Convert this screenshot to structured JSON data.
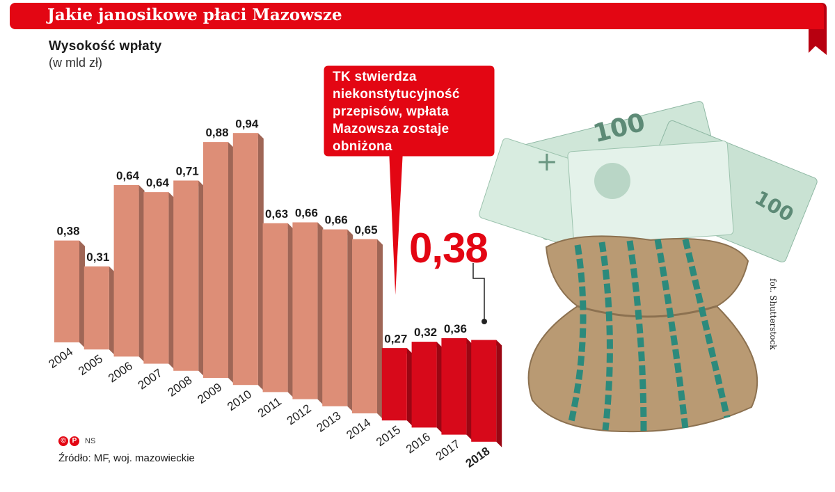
{
  "header": {
    "title": "Jakie janosikowe płaci Mazowsze"
  },
  "chart_data": {
    "type": "bar",
    "title": "Wysokość wpłaty",
    "ylabel": "(w mld zł)",
    "categories": [
      "2004",
      "2005",
      "2006",
      "2007",
      "2008",
      "2009",
      "2010",
      "2011",
      "2012",
      "2013",
      "2014",
      "2015",
      "2016",
      "2017",
      "2018"
    ],
    "values": [
      0.38,
      0.31,
      0.64,
      0.64,
      0.71,
      0.88,
      0.94,
      0.63,
      0.66,
      0.66,
      0.65,
      0.27,
      0.32,
      0.36,
      0.38
    ],
    "value_labels": [
      "0,38",
      "0,31",
      "0,64",
      "0,64",
      "0,71",
      "0,88",
      "0,94",
      "0,63",
      "0,66",
      "0,66",
      "0,65",
      "0,27",
      "0,32",
      "0,36",
      ""
    ],
    "highlight_value": "0,38",
    "colors": {
      "before": "#dd8e77",
      "after": "#d7091a"
    },
    "after_from_category": "2015",
    "annotation": "TK stwierdza niekonstytucyjność przepisów, wpłata Mazowsza zostaje obniżona"
  },
  "photo_credit": "fot. Shutterstock",
  "logo": {
    "marks": [
      "©",
      "P"
    ],
    "author": "NS"
  },
  "source": "Źródło: MF, woj. mazowieckie",
  "colors": {
    "brand_red": "#e30613"
  }
}
